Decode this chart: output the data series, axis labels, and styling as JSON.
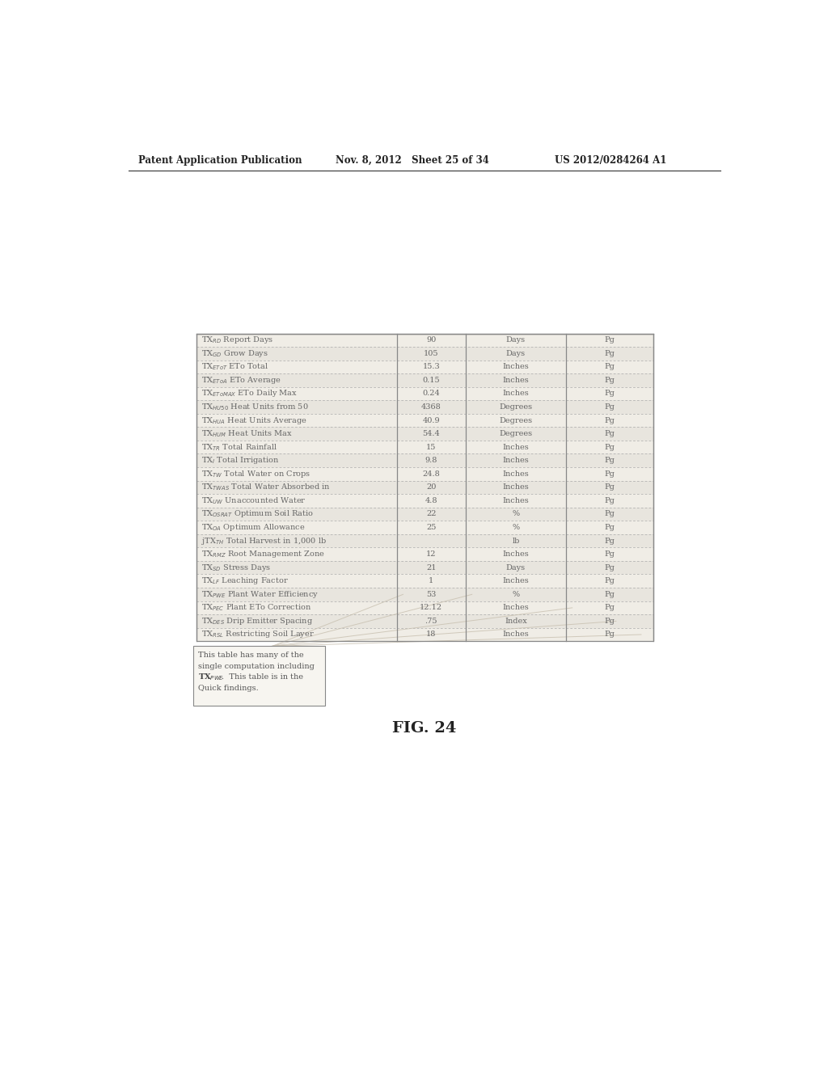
{
  "header_text_left": "Patent Application Publication",
  "header_text_mid": "Nov. 8, 2012   Sheet 25 of 34",
  "header_text_right": "US 2012/0284264 A1",
  "figure_label": "FIG. 24",
  "row_labels": [
    "TX$_{RD}$ Report Days",
    "TX$_{GD}$ Grow Days",
    "TX$_{EToT}$ ETo Total",
    "TX$_{EToA}$ ETo Average",
    "TX$_{EToMAX}$ ETo Daily Max",
    "TX$_{HU50}$ Heat Units from 50",
    "TX$_{HUA}$ Heat Units Average",
    "TX$_{HUM}$ Heat Units Max",
    "TX$_{TR}$ Total Rainfall",
    "TX$_{I}$ Total Irrigation",
    "TX$_{TW}$ Total Water on Crops",
    "TX$_{TWAS}$ Total Water Absorbed in",
    "TX$_{UW}$ Unaccounted Water",
    "TX$_{OSRAT}$ Optimum Soil Ratio",
    "TX$_{OA}$ Optimum Allowance",
    "jTX$_{TH}$ Total Harvest in 1,000 lb",
    "TX$_{RMZ}$ Root Management Zone",
    "TX$_{SD}$ Stress Days",
    "TX$_{LF}$ Leaching Factor",
    "TX$_{PWE}$ Plant Water Efficiency",
    "TX$_{PEC}$ Plant ETo Correction",
    "TX$_{DES}$ Drip Emitter Spacing",
    "TX$_{RSL}$ Restricting Soil Layer"
  ],
  "col2": [
    "90",
    "105",
    "15.3",
    "0.15",
    "0.24",
    "4368",
    "40.9",
    "54.4",
    "15",
    "9.8",
    "24.8",
    "20",
    "4.8",
    "22",
    "25",
    "",
    "12",
    "21",
    "1",
    "53",
    "12.12",
    ".75",
    "18"
  ],
  "col3": [
    "Days",
    "Days",
    "Inches",
    "Inches",
    "Inches",
    "Degrees",
    "Degrees",
    "Degrees",
    "Inches",
    "Inches",
    "Inches",
    "Inches",
    "Inches",
    "%",
    "%",
    "lb",
    "Inches",
    "Days",
    "Inches",
    "%",
    "Inches",
    "Index",
    "Inches"
  ],
  "col4": [
    "Pg",
    "Pg",
    "Pg",
    "Pg",
    "Pg",
    "Pg",
    "Pg",
    "Pg",
    "Pg",
    "Pg",
    "Pg",
    "Pg",
    "Pg",
    "Pg",
    "Pg",
    "Pg",
    "Pg",
    "Pg",
    "Pg",
    "Pg",
    "Pg",
    "Pg",
    "Pg"
  ],
  "bg_color": "#ffffff",
  "table_line_color": "#aaaaaa",
  "table_text_color": "#666666",
  "table_bg": "#f7f5f0"
}
